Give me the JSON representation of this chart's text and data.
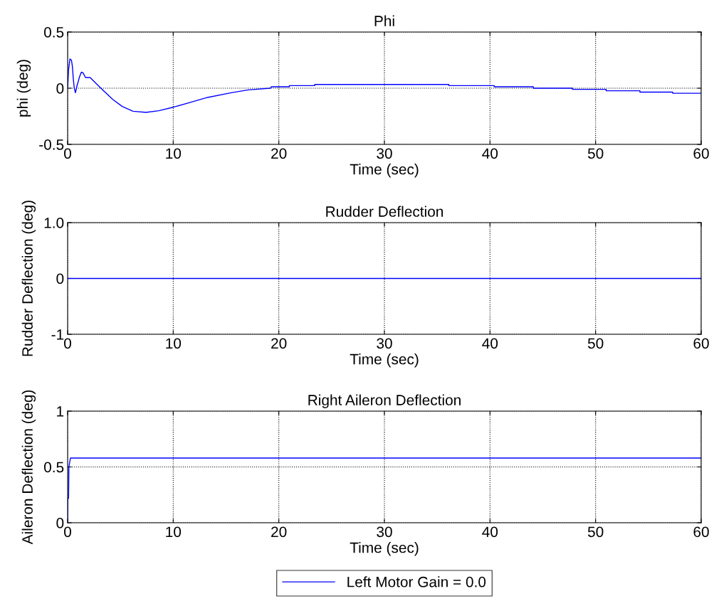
{
  "chart_data": [
    {
      "type": "line",
      "title": "Phi",
      "xlabel": "Time (sec)",
      "ylabel": "phi (deg)",
      "xlim": [
        0,
        60
      ],
      "xticks": [
        0,
        10,
        20,
        30,
        40,
        50,
        60
      ],
      "ylim": [
        -0.5,
        0.5
      ],
      "yticks": [
        -0.5,
        0,
        0.5
      ],
      "grid": true,
      "series": [
        {
          "color": "#0000ff",
          "x": [
            0,
            0.09,
            0.22,
            0.36,
            0.45,
            0.54,
            0.63,
            0.74,
            0.9,
            1.01,
            1.12,
            1.3,
            1.46,
            1.69,
            2.13,
            3.15,
            4.27,
            5.17,
            6.18,
            7.42,
            8.65,
            10,
            11.46,
            13.26,
            15.5,
            17.1,
            19.2,
            19.3,
            21.0,
            21.0,
            23.4,
            23.4,
            36.1,
            36.1,
            40.4,
            40.4,
            44.1,
            44.1,
            47.8,
            47.8,
            51.0,
            51.0,
            54.2,
            54.2,
            57.3,
            57.3,
            60
          ],
          "values": [
            0,
            0.165,
            0.26,
            0.25,
            0.196,
            0.08,
            0,
            -0.04,
            0.027,
            0.06,
            0.1,
            0.143,
            0.137,
            0.095,
            0.095,
            0,
            -0.1,
            -0.162,
            -0.205,
            -0.215,
            -0.2,
            -0.169,
            -0.131,
            -0.082,
            -0.04,
            -0.015,
            0,
            0.013,
            0.013,
            0.023,
            0.023,
            0.033,
            0.033,
            0.023,
            0.023,
            0.013,
            0.013,
            0,
            0,
            -0.01,
            -0.01,
            -0.023,
            -0.023,
            -0.035,
            -0.035,
            -0.045,
            -0.045
          ]
        }
      ]
    },
    {
      "type": "line",
      "title": "Rudder Deflection",
      "xlabel": "Time (sec)",
      "ylabel": "Rudder Deflection (deg)",
      "xlim": [
        0,
        60
      ],
      "xticks": [
        0,
        10,
        20,
        30,
        40,
        50,
        60
      ],
      "ylim": [
        -1,
        1
      ],
      "yticks": [
        -1,
        0,
        {
          "value": 1,
          "label": "1.0"
        }
      ],
      "grid": true,
      "series": [
        {
          "color": "#0000ff",
          "x": [
            0,
            60
          ],
          "values": [
            0,
            0
          ]
        }
      ]
    },
    {
      "type": "line",
      "title": "Right Aileron Deflection",
      "xlabel": "Time (sec)",
      "ylabel": "Aileron Deflection (deg)",
      "xlim": [
        0,
        60
      ],
      "xticks": [
        0,
        10,
        20,
        30,
        40,
        50,
        60
      ],
      "ylim": [
        0,
        1
      ],
      "yticks": [
        0,
        0.5,
        1
      ],
      "grid": true,
      "legend": "bottom",
      "series": [
        {
          "name": "Left Motor Gain = 0.0",
          "color": "#0000ff",
          "x": [
            0,
            0.02,
            0.09,
            0.12,
            0.27,
            60
          ],
          "values": [
            0,
            0.22,
            0.22,
            0.5,
            0.58,
            0.58
          ]
        }
      ]
    }
  ]
}
